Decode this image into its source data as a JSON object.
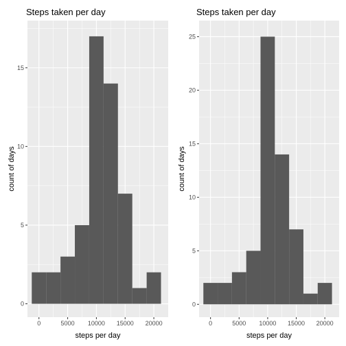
{
  "chart_data": [
    {
      "type": "bar",
      "title": "Steps taken per day",
      "xlabel": "steps per day",
      "ylabel": "count of days",
      "xlim": [
        -2000,
        22500
      ],
      "ylim": [
        -0.85,
        18.0
      ],
      "x_ticks": [
        0,
        5000,
        10000,
        15000,
        20000
      ],
      "x_tick_labels": [
        "0",
        "5000",
        "10000",
        "15000",
        "20000"
      ],
      "y_ticks": [
        0,
        5,
        10,
        15
      ],
      "y_tick_labels": [
        "0",
        "5",
        "10",
        "15"
      ],
      "grid": true,
      "bin_edges": [
        -1250,
        1250,
        3750,
        6250,
        8750,
        11250,
        13750,
        16250,
        18750,
        21250
      ],
      "values": [
        2,
        2,
        3,
        5,
        17,
        14,
        7,
        1,
        2
      ],
      "bar_color": "#595959",
      "panel_color": "#ebebeb"
    },
    {
      "type": "bar",
      "title": "Steps taken per day",
      "xlabel": "steps per day",
      "ylabel": "count of days",
      "xlim": [
        -2000,
        22500
      ],
      "ylim": [
        -1.2,
        26.5
      ],
      "x_ticks": [
        0,
        5000,
        10000,
        15000,
        20000
      ],
      "x_tick_labels": [
        "0",
        "5000",
        "10000",
        "15000",
        "20000"
      ],
      "y_ticks": [
        0,
        5,
        10,
        15,
        20,
        25
      ],
      "y_tick_labels": [
        "0",
        "5",
        "10",
        "15",
        "20",
        "25"
      ],
      "grid": true,
      "bin_edges": [
        -1250,
        1250,
        3750,
        6250,
        8750,
        11250,
        13750,
        16250,
        18750,
        21250
      ],
      "values": [
        2,
        2,
        3,
        5,
        25,
        14,
        7,
        1,
        2
      ],
      "bar_color": "#595959",
      "panel_color": "#ebebeb"
    }
  ]
}
